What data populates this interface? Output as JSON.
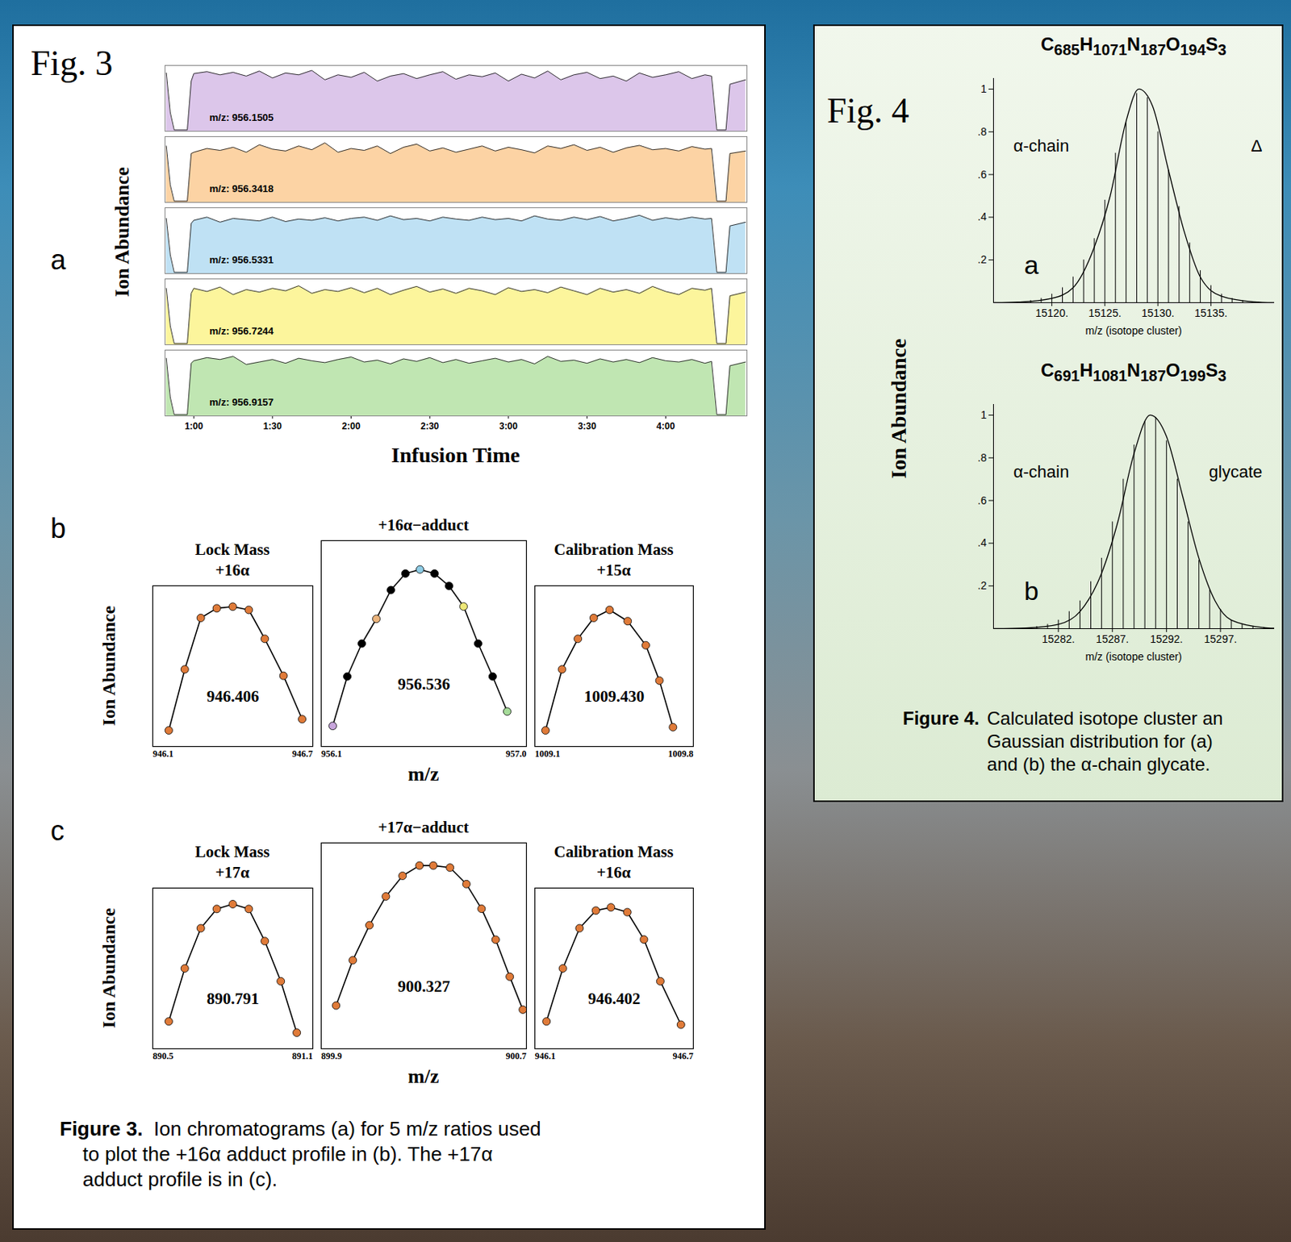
{
  "chart_data": [
    {
      "type": "area",
      "panel": "a",
      "ylabel": "Ion Abundance",
      "xlabel": "Infusion Time",
      "x": [
        49.5,
        51,
        52.5,
        57.5,
        59,
        60,
        65,
        70,
        75,
        80,
        85,
        90,
        95,
        100,
        105,
        110,
        115,
        120,
        125,
        130,
        135,
        140,
        145,
        150,
        155,
        160,
        165,
        170,
        175,
        180,
        185,
        190,
        195,
        200,
        205,
        210,
        215,
        220,
        225,
        230,
        235,
        240,
        245,
        250,
        255,
        257.5,
        259.5,
        263,
        264.5,
        270.5
      ],
      "xlim": [
        49,
        271
      ],
      "xticks": [
        {
          "value": 60,
          "label": "1:00"
        },
        {
          "value": 90,
          "label": "1:30"
        },
        {
          "value": 120,
          "label": "2:00"
        },
        {
          "value": 150,
          "label": "2:30"
        },
        {
          "value": 180,
          "label": "3:00"
        },
        {
          "value": 210,
          "label": "3:30"
        },
        {
          "value": 240,
          "label": "4:00"
        }
      ],
      "ylim": [
        0,
        1.05
      ],
      "tick_labels": "x",
      "series": [
        {
          "name": "m/z: 956.1505",
          "color": "#dcc6ea",
          "values": [
            0.93,
            0.3,
            0.02,
            0.02,
            0.8,
            0.92,
            0.95,
            0.9,
            0.94,
            0.88,
            0.96,
            0.85,
            0.93,
            0.9,
            0.97,
            0.82,
            0.9,
            0.86,
            0.94,
            0.8,
            0.88,
            0.92,
            0.84,
            0.9,
            0.95,
            0.83,
            0.9,
            0.87,
            0.93,
            0.8,
            0.91,
            0.85,
            0.96,
            0.82,
            0.9,
            0.94,
            0.84,
            0.88,
            0.8,
            0.93,
            0.86,
            0.9,
            0.95,
            0.84,
            0.9,
            0.88,
            0.02,
            0.02,
            0.75,
            0.82
          ]
        },
        {
          "name": "m/z: 956.3418",
          "color": "#fcd3a4",
          "values": [
            0.9,
            0.28,
            0.02,
            0.02,
            0.78,
            0.8,
            0.86,
            0.83,
            0.88,
            0.8,
            0.92,
            0.85,
            0.82,
            0.9,
            0.84,
            0.95,
            0.8,
            0.86,
            0.83,
            0.9,
            0.78,
            0.88,
            0.93,
            0.82,
            0.87,
            0.8,
            0.85,
            0.9,
            0.82,
            0.88,
            0.84,
            0.79,
            0.9,
            0.86,
            0.92,
            0.83,
            0.88,
            0.8,
            0.87,
            0.91,
            0.84,
            0.86,
            0.82,
            0.89,
            0.85,
            0.86,
            0.02,
            0.02,
            0.78,
            0.82
          ]
        },
        {
          "name": "m/z: 956.5331",
          "color": "#bfe1f4",
          "values": [
            0.88,
            0.3,
            0.02,
            0.02,
            0.8,
            0.85,
            0.9,
            0.82,
            0.88,
            0.86,
            0.84,
            0.9,
            0.83,
            0.87,
            0.85,
            0.89,
            0.84,
            0.88,
            0.9,
            0.85,
            0.92,
            0.86,
            0.88,
            0.84,
            0.9,
            0.87,
            0.85,
            0.9,
            0.86,
            0.88,
            0.84,
            0.92,
            0.87,
            0.85,
            0.9,
            0.86,
            0.91,
            0.84,
            0.88,
            0.93,
            0.85,
            0.89,
            0.86,
            0.9,
            0.87,
            0.88,
            0.02,
            0.02,
            0.76,
            0.82
          ]
        },
        {
          "name": "m/z: 956.7244",
          "color": "#fcf59c",
          "values": [
            0.9,
            0.3,
            0.02,
            0.02,
            0.82,
            0.9,
            0.85,
            0.92,
            0.8,
            0.88,
            0.84,
            0.9,
            0.86,
            0.94,
            0.82,
            0.88,
            0.85,
            0.91,
            0.83,
            0.9,
            0.8,
            0.87,
            0.93,
            0.84,
            0.89,
            0.82,
            0.9,
            0.86,
            0.8,
            0.91,
            0.85,
            0.88,
            0.83,
            0.92,
            0.86,
            0.8,
            0.9,
            0.84,
            0.88,
            0.82,
            0.93,
            0.85,
            0.8,
            0.9,
            0.87,
            0.9,
            0.02,
            0.02,
            0.78,
            0.84
          ]
        },
        {
          "name": "m/z: 956.9157",
          "color": "#c0e6b2",
          "values": [
            0.92,
            0.3,
            0.02,
            0.02,
            0.84,
            0.88,
            0.93,
            0.9,
            0.95,
            0.82,
            0.86,
            0.9,
            0.84,
            0.92,
            0.88,
            0.85,
            0.9,
            0.94,
            0.86,
            0.89,
            0.83,
            0.91,
            0.87,
            0.93,
            0.85,
            0.9,
            0.84,
            0.88,
            0.92,
            0.86,
            0.9,
            0.83,
            0.95,
            0.87,
            0.89,
            0.84,
            0.91,
            0.86,
            0.9,
            0.85,
            0.93,
            0.88,
            0.86,
            0.9,
            0.84,
            0.87,
            0.02,
            0.02,
            0.8,
            0.86
          ]
        }
      ]
    },
    {
      "type": "line",
      "marker": "circle",
      "title": "Lock Mass +16α",
      "ylabel": "Ion Abundance",
      "annotation": "946.406",
      "x": [
        946.16,
        946.22,
        946.28,
        946.34,
        946.4,
        946.46,
        946.52,
        946.59,
        946.66
      ],
      "values": [
        0.1,
        0.48,
        0.8,
        0.86,
        0.87,
        0.85,
        0.67,
        0.44,
        0.17
      ],
      "color": "#e07b39",
      "xlim": [
        946.1,
        946.7
      ],
      "xticks": [
        946.1,
        946.7
      ],
      "ylim": [
        0,
        1
      ],
      "tick_labels": "x"
    },
    {
      "type": "line",
      "marker": "circle",
      "panel": "b",
      "title": "+16α−adduct",
      "xlabel": "m/z",
      "annotation": "956.536",
      "x": [
        956.1505,
        956.2143,
        956.278,
        956.3418,
        956.4056,
        956.4693,
        956.5331,
        956.5969,
        956.6606,
        956.7244,
        956.7882,
        956.8519,
        956.9157
      ],
      "values": [
        0.1,
        0.34,
        0.5,
        0.62,
        0.76,
        0.84,
        0.86,
        0.84,
        0.78,
        0.68,
        0.5,
        0.34,
        0.17
      ],
      "colors": [
        "#c8a6dc",
        "#000000",
        "#000000",
        "#ebb47c",
        "#000000",
        "#000000",
        "#8fcde6",
        "#000000",
        "#000000",
        "#eee878",
        "#000000",
        "#000000",
        "#a6dc9a"
      ],
      "xlim": [
        956.1,
        957
      ],
      "xticks": [
        956.1,
        {
          "value": 957,
          "label": "957.0"
        }
      ],
      "ylim": [
        0,
        1
      ],
      "tick_labels": "x"
    },
    {
      "type": "line",
      "marker": "circle",
      "title": "Calibration Mass +15α",
      "annotation": "1009.430",
      "x": [
        1009.147,
        1009.22,
        1009.29,
        1009.36,
        1009.43,
        1009.51,
        1009.59,
        1009.65,
        1009.71
      ],
      "values": [
        0.1,
        0.48,
        0.67,
        0.8,
        0.85,
        0.78,
        0.63,
        0.41,
        0.12
      ],
      "color": "#e07b39",
      "xlim": [
        1009.1,
        1009.8
      ],
      "xticks": [
        1009.1,
        1009.8
      ],
      "ylim": [
        0,
        1
      ],
      "tick_labels": "x"
    },
    {
      "type": "line",
      "marker": "circle",
      "title": "Lock Mass +17α",
      "ylabel": "Ion Abundance",
      "annotation": "890.791",
      "x": [
        890.56,
        890.62,
        890.68,
        890.74,
        890.8,
        890.86,
        890.92,
        890.98,
        891.04
      ],
      "values": [
        0.17,
        0.5,
        0.75,
        0.87,
        0.9,
        0.87,
        0.67,
        0.42,
        0.1
      ],
      "color": "#e07b39",
      "xlim": [
        890.5,
        891.1
      ],
      "xticks": [
        890.5,
        891.1
      ],
      "ylim": [
        0,
        1
      ],
      "tick_labels": "x"
    },
    {
      "type": "line",
      "marker": "circle",
      "panel": "c",
      "title": "+17α−adduct",
      "xlabel": "m/z",
      "annotation": "900.327",
      "x": [
        899.958,
        900.023,
        900.088,
        900.152,
        900.217,
        900.283,
        900.337,
        900.402,
        900.466,
        900.525,
        900.58,
        900.635,
        900.686
      ],
      "values": [
        0.21,
        0.43,
        0.6,
        0.74,
        0.84,
        0.89,
        0.89,
        0.88,
        0.8,
        0.68,
        0.53,
        0.35,
        0.19
      ],
      "color": "#e07b39",
      "xlim": [
        899.9,
        900.7
      ],
      "xticks": [
        899.9,
        900.7
      ],
      "ylim": [
        0,
        1
      ],
      "tick_labels": "x"
    },
    {
      "type": "line",
      "marker": "circle",
      "title": "Calibration Mass +16α",
      "annotation": "946.402",
      "x": [
        946.144,
        946.206,
        946.269,
        946.331,
        946.388,
        946.45,
        946.513,
        946.575,
        946.653
      ],
      "values": [
        0.17,
        0.5,
        0.75,
        0.86,
        0.88,
        0.85,
        0.68,
        0.42,
        0.15
      ],
      "color": "#e07b39",
      "xlim": [
        946.1,
        946.7
      ],
      "xticks": [
        946.1,
        946.7
      ],
      "ylim": [
        0,
        1
      ],
      "tick_labels": "x"
    },
    {
      "type": "bar",
      "panel": "a",
      "title": "C685H1071N187O194S3",
      "annotations": [
        "α-chain",
        "Δ"
      ],
      "xlabel": "m/z (isotope cluster)",
      "x": [
        15118,
        15119,
        15120,
        15121,
        15122,
        15123,
        15124,
        15125,
        15126,
        15127,
        15128,
        15129,
        15130,
        15131,
        15132,
        15133,
        15134,
        15135,
        15136,
        15137,
        15138
      ],
      "values": [
        0.01,
        0.02,
        0.04,
        0.07,
        0.12,
        0.2,
        0.3,
        0.48,
        0.7,
        0.85,
        0.98,
        0.96,
        0.8,
        0.62,
        0.45,
        0.28,
        0.15,
        0.08,
        0.04,
        0.02,
        0.01
      ],
      "curve": {
        "x": [
          15114.5,
          15117,
          15120,
          15122,
          15124,
          15125.5,
          15127,
          15128.2,
          15129.5,
          15131,
          15132.5,
          15134,
          15136,
          15139,
          15141
        ],
        "values": [
          0,
          0.003,
          0.02,
          0.07,
          0.26,
          0.5,
          0.85,
          1,
          0.92,
          0.62,
          0.33,
          0.12,
          0.03,
          0.004,
          0
        ]
      },
      "color": "#000000",
      "xlim": [
        15114.5,
        15141
      ],
      "xticks": [
        {
          "value": 15120,
          "label": "15120."
        },
        {
          "value": 15125,
          "label": "15125."
        },
        {
          "value": 15130,
          "label": "15130."
        },
        {
          "value": 15135,
          "label": "15135."
        }
      ],
      "ylim": [
        0,
        1.05
      ],
      "yticks": [
        {
          "value": 0.2,
          "label": ".2"
        },
        {
          "value": 0.4,
          "label": ".4"
        },
        {
          "value": 0.6,
          "label": ".6"
        },
        {
          "value": 0.8,
          "label": ".8"
        },
        1
      ]
    },
    {
      "type": "bar",
      "panel": "b",
      "title": "C691H1081N187O199S3",
      "annotations": [
        "α-chain",
        "glycate"
      ],
      "xlabel": "m/z (isotope cluster)",
      "x": [
        15280,
        15281,
        15282,
        15283,
        15284,
        15285,
        15286,
        15287,
        15288,
        15289,
        15290,
        15291,
        15292,
        15293,
        15294,
        15295,
        15296,
        15297,
        15298,
        15299,
        15300,
        15301
      ],
      "values": [
        0.01,
        0.02,
        0.04,
        0.08,
        0.13,
        0.22,
        0.33,
        0.5,
        0.7,
        0.86,
        0.97,
        0.99,
        0.88,
        0.7,
        0.5,
        0.32,
        0.18,
        0.09,
        0.04,
        0.02,
        0.01,
        0.005
      ],
      "curve": {
        "x": [
          15276,
          15279,
          15282,
          15284,
          15286,
          15287.5,
          15289,
          15290.5,
          15292,
          15293.5,
          15295,
          15296.5,
          15298,
          15301,
          15302
        ],
        "values": [
          0,
          0.003,
          0.02,
          0.08,
          0.26,
          0.5,
          0.82,
          1,
          0.9,
          0.62,
          0.33,
          0.13,
          0.04,
          0.005,
          0.002
        ]
      },
      "color": "#000000",
      "xlim": [
        15276,
        15302
      ],
      "xticks": [
        {
          "value": 15282,
          "label": "15282."
        },
        {
          "value": 15287,
          "label": "15287."
        },
        {
          "value": 15292,
          "label": "15292."
        },
        {
          "value": 15297,
          "label": "15297."
        }
      ],
      "ylim": [
        0,
        1.05
      ],
      "yticks": [
        {
          "value": 0.2,
          "label": ".2"
        },
        {
          "value": 0.4,
          "label": ".4"
        },
        {
          "value": 0.6,
          "label": ".6"
        },
        {
          "value": 0.8,
          "label": ".8"
        },
        1
      ]
    }
  ],
  "figures": [
    {
      "label": "Fig. 3",
      "caption": {
        "label": "Figure 3.",
        "lines": [
          "Ion chromatograms (a) for 5 m/z ratios used",
          "to plot the +16α adduct profile in (b).  The +17α",
          "adduct profile is in (c)."
        ]
      }
    },
    {
      "label": "Fig. 4",
      "ylabel": "Ion Abundance",
      "caption": {
        "label": "Figure 4.",
        "lines": [
          "Calculated isotope cluster an",
          "Gaussian distribution for (a)",
          "and (b) the α-chain glycate."
        ]
      }
    }
  ]
}
